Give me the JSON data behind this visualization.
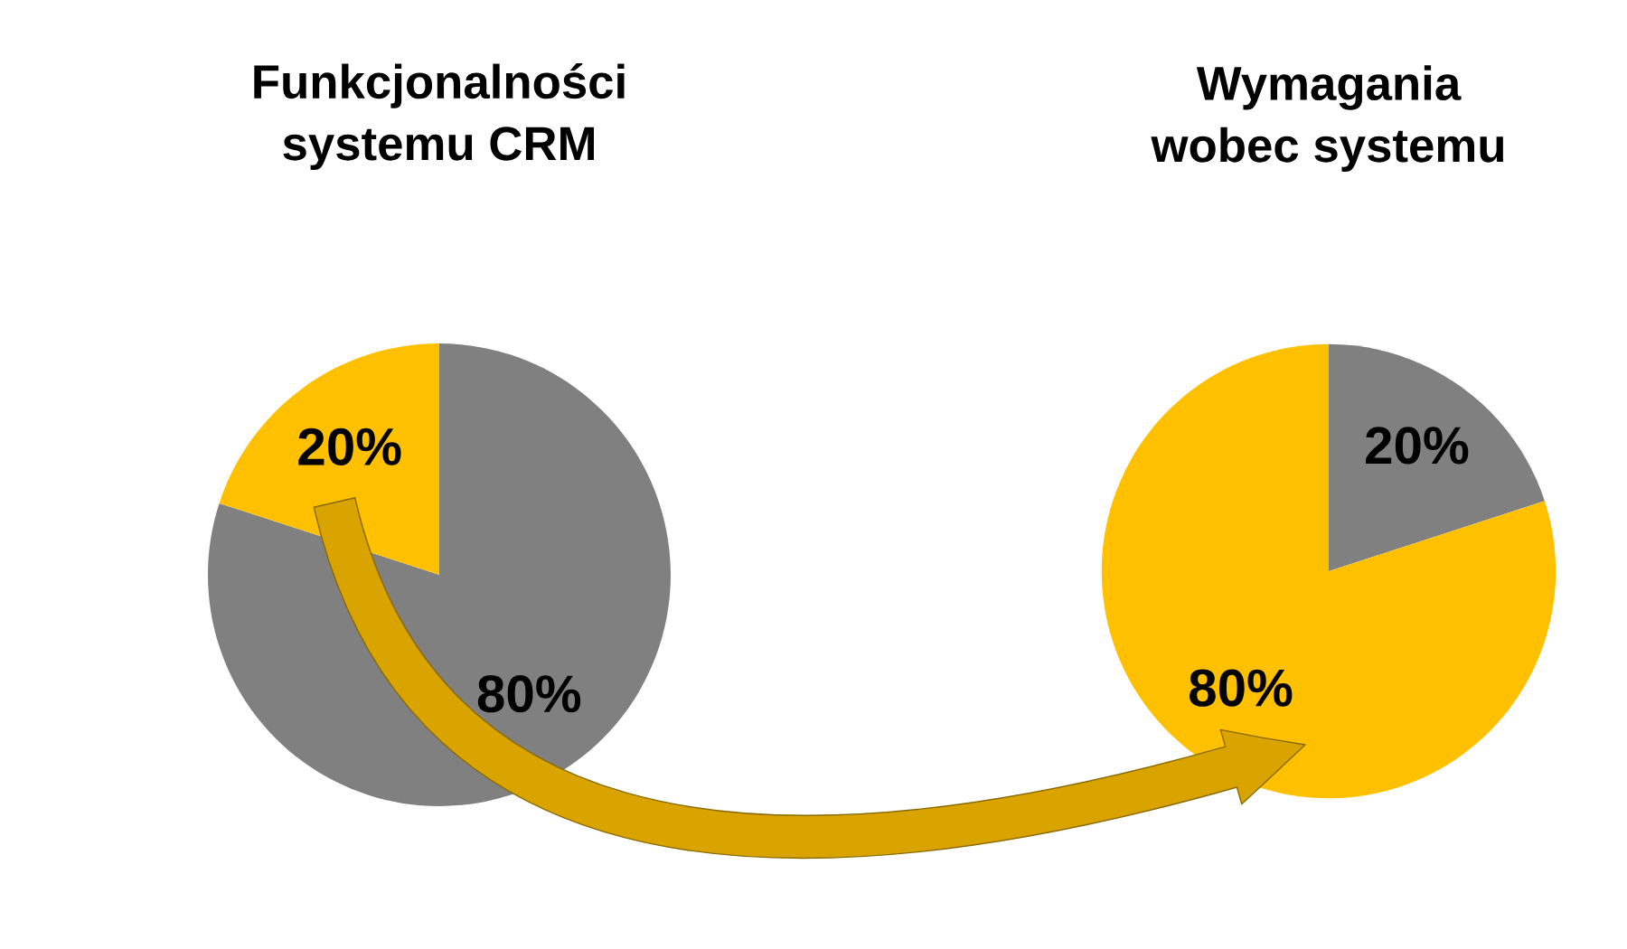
{
  "chart_data": [
    {
      "type": "pie",
      "title": "Funkcjonalności\nsystemu CRM",
      "categories": [
        null,
        null
      ],
      "values": [
        80,
        20
      ],
      "colors": [
        "#808080",
        "#ffc000"
      ],
      "value_labels": [
        "80%",
        "20%"
      ]
    },
    {
      "type": "pie",
      "title": "Wymagania\nwobec systemu",
      "categories": [
        null,
        null
      ],
      "values": [
        20,
        80
      ],
      "colors": [
        "#808080",
        "#ffc000"
      ],
      "value_labels": [
        "20%",
        "80%"
      ]
    }
  ]
}
